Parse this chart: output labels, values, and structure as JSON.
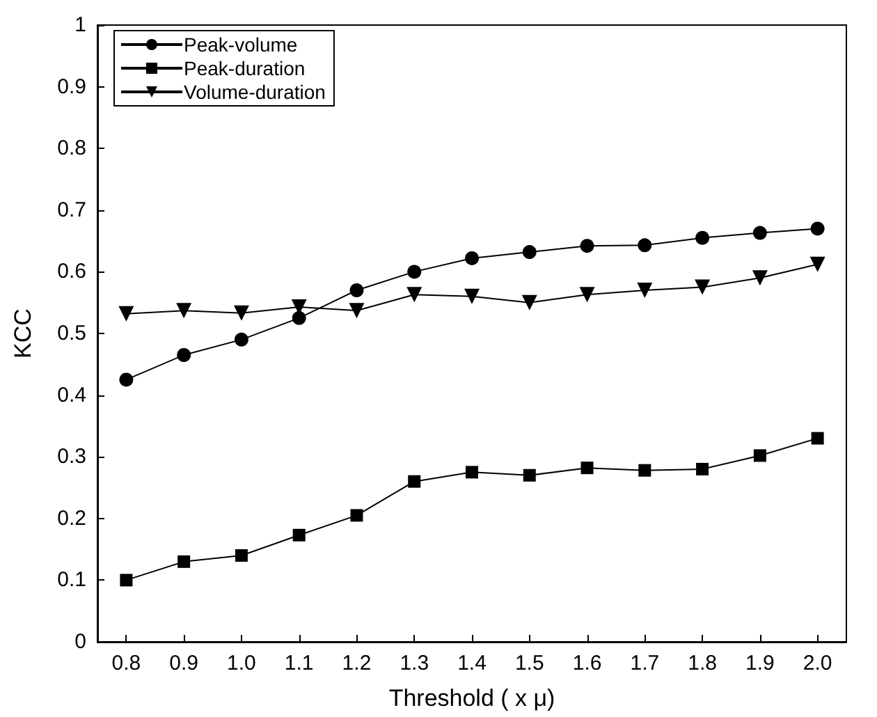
{
  "chart_data": {
    "type": "line",
    "xlabel": "Threshold ( x μ)",
    "ylabel": "KCC",
    "categories": [
      "0.8",
      "0.9",
      "1.0",
      "1.1",
      "1.2",
      "1.3",
      "1.4",
      "1.5",
      "1.6",
      "1.7",
      "1.8",
      "1.9",
      "2.0"
    ],
    "series": [
      {
        "name": "Peak-volume",
        "color": "#000000",
        "marker": "circle",
        "values": [
          0.425,
          0.465,
          0.49,
          0.525,
          0.57,
          0.6,
          0.622,
          0.632,
          0.642,
          0.643,
          0.655,
          0.663,
          0.67
        ]
      },
      {
        "name": "Peak-duration",
        "color": "#000000",
        "marker": "square",
        "values": [
          0.1,
          0.13,
          0.14,
          0.173,
          0.205,
          0.26,
          0.275,
          0.27,
          0.282,
          0.278,
          0.28,
          0.302,
          0.33
        ]
      },
      {
        "name": "Volume-duration",
        "color": "#000000",
        "marker": "triangle",
        "values": [
          0.532,
          0.537,
          0.533,
          0.543,
          0.537,
          0.563,
          0.56,
          0.55,
          0.563,
          0.57,
          0.575,
          0.59,
          0.612
        ]
      }
    ],
    "ylim": [
      0,
      1
    ],
    "yticks": [
      0,
      0.1,
      0.2,
      0.3,
      0.4,
      0.5,
      0.6,
      0.7,
      0.8,
      0.9,
      1
    ],
    "legend": "top left",
    "grid": false,
    "line_style": "solid"
  }
}
